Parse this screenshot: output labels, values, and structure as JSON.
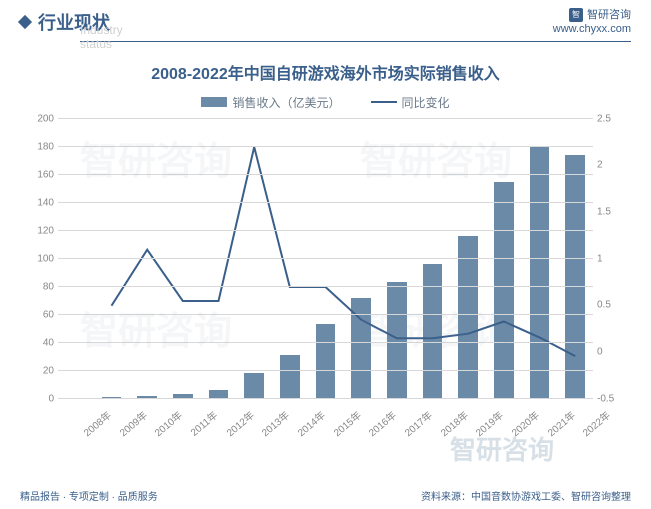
{
  "header": {
    "section_title": "行业现状",
    "section_subtitle": "Industry status",
    "brand": "智研咨询",
    "url": "www.chyxx.com"
  },
  "chart": {
    "title": "2008-2022年中国自研游戏海外市场实际销售收入",
    "type": "bar+line",
    "legend": {
      "bar": "销售收入（亿美元）",
      "line": "同比变化"
    },
    "categories": [
      "2008年",
      "2009年",
      "2010年",
      "2011年",
      "2012年",
      "2013年",
      "2014年",
      "2015年",
      "2016年",
      "2017年",
      "2018年",
      "2019年",
      "2020年",
      "2021年",
      "2022年"
    ],
    "bar_values": [
      0.7,
      1,
      2,
      3.5,
      6,
      18,
      31,
      53,
      72,
      83,
      96,
      116,
      155,
      180,
      174
    ],
    "line_values": [
      null,
      0.5,
      1.1,
      0.55,
      0.55,
      2.2,
      0.7,
      0.7,
      0.35,
      0.15,
      0.15,
      0.2,
      0.33,
      0.16,
      -0.04
    ],
    "y_left": {
      "min": 0,
      "max": 200,
      "step": 20
    },
    "y_right": {
      "min": -0.5,
      "max": 2.5,
      "step": 0.5
    },
    "colors": {
      "bar": "#6b8aa8",
      "line": "#3a5f8a",
      "grid": "#d8d8d8",
      "text": "#888888",
      "title": "#3a5f8a",
      "background": "#ffffff"
    },
    "bar_width_ratio": 0.55,
    "title_fontsize": 16,
    "label_fontsize": 10
  },
  "footer": {
    "left": "精品报告 · 专项定制 · 品质服务",
    "right": "资料来源：中国音数协游戏工委、智研咨询整理"
  },
  "watermark": "智研咨询"
}
